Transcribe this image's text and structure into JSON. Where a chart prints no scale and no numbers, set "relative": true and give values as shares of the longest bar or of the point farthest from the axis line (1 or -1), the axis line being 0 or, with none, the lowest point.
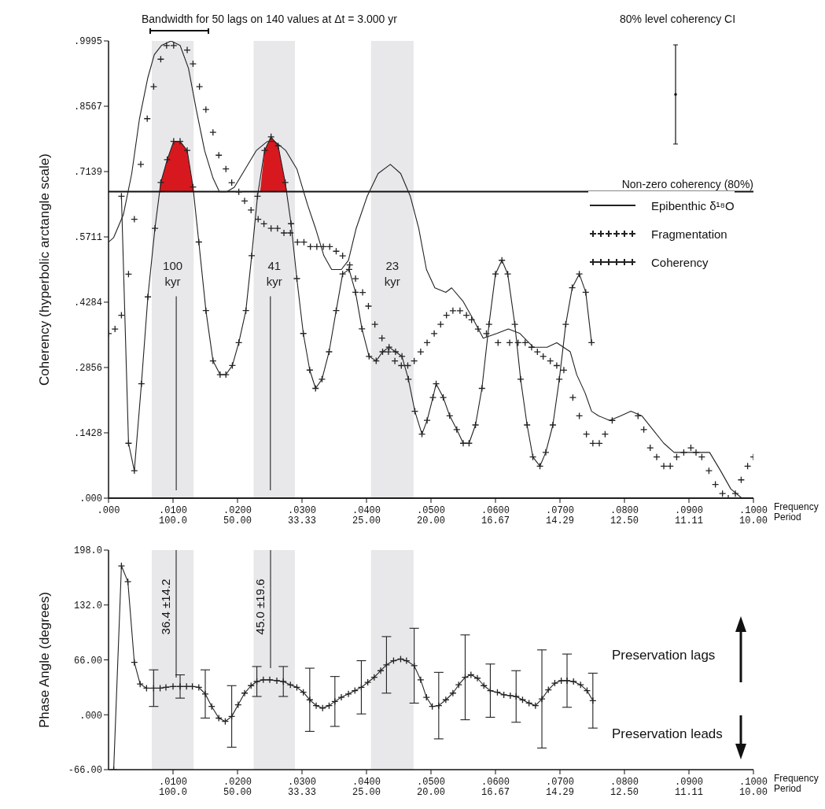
{
  "chart_data": [
    {
      "type": "line",
      "relative": true,
      "legend": "right",
      "xlim": [
        0,
        0.1
      ],
      "series": [
        {
          "name": "Epibenthic δ¹⁸O",
          "marker": "none",
          "color": "#222222",
          "x": [
            0,
            0.0008,
            0.0023,
            0.0036,
            0.0048,
            0.0061,
            0.0071,
            0.0082,
            0.0097,
            0.0111,
            0.0124,
            0.0136,
            0.0149,
            0.0162,
            0.0172,
            0.0183,
            0.0195,
            0.0212,
            0.0229,
            0.0246,
            0.0258,
            0.0275,
            0.0292,
            0.0309,
            0.0321,
            0.0334,
            0.0346,
            0.0361,
            0.0372,
            0.0384,
            0.0401,
            0.0418,
            0.0437,
            0.0453,
            0.0468,
            0.0481,
            0.0493,
            0.0506,
            0.0523,
            0.0532,
            0.055,
            0.0566,
            0.0581,
            0.0602,
            0.062,
            0.0638,
            0.0659,
            0.068,
            0.0695,
            0.0716,
            0.0726,
            0.0739,
            0.0749,
            0.076,
            0.0777,
            0.0794,
            0.081,
            0.0827,
            0.0844,
            0.0861,
            0.0877,
            0.0894,
            0.0911,
            0.0932,
            0.0949,
            0.0965,
            0.0982,
            0.1
          ],
          "values": [
            0.56,
            0.57,
            0.62,
            0.71,
            0.83,
            0.92,
            0.97,
            0.99,
            1,
            0.99,
            0.94,
            0.85,
            0.76,
            0.7,
            0.67,
            0.67,
            0.68,
            0.72,
            0.76,
            0.78,
            0.78,
            0.76,
            0.72,
            0.64,
            0.59,
            0.53,
            0.5,
            0.5,
            0.52,
            0.59,
            0.66,
            0.71,
            0.73,
            0.71,
            0.66,
            0.59,
            0.5,
            0.46,
            0.45,
            0.46,
            0.43,
            0.39,
            0.35,
            0.36,
            0.37,
            0.36,
            0.33,
            0.33,
            0.34,
            0.32,
            0.27,
            0.23,
            0.19,
            0.18,
            0.17,
            0.18,
            0.19,
            0.18,
            0.15,
            0.12,
            0.1,
            0.1,
            0.1,
            0.1,
            0.06,
            0.02,
            0,
            0
          ]
        },
        {
          "name": "Fragmentation",
          "type": "scatter",
          "marker": "cross",
          "color": "#222222",
          "x": [
            0,
            0.001,
            0.002,
            0.0031,
            0.004,
            0.005,
            0.006,
            0.007,
            0.0081,
            0.009,
            0.0101,
            0.0122,
            0.0131,
            0.0141,
            0.0151,
            0.0162,
            0.0171,
            0.0182,
            0.0191,
            0.0202,
            0.0211,
            0.0221,
            0.0232,
            0.0241,
            0.0252,
            0.0262,
            0.0272,
            0.0282,
            0.0293,
            0.0303,
            0.0313,
            0.0323,
            0.0333,
            0.0343,
            0.0353,
            0.0363,
            0.0374,
            0.0383,
            0.0394,
            0.0403,
            0.0413,
            0.0424,
            0.0434,
            0.0444,
            0.0454,
            0.0464,
            0.0474,
            0.0484,
            0.0494,
            0.0505,
            0.0515,
            0.0524,
            0.0534,
            0.0545,
            0.0555,
            0.0563,
            0.0573,
            0.0586,
            0.0604,
            0.0622,
            0.0635,
            0.0646,
            0.0656,
            0.0665,
            0.0674,
            0.0685,
            0.0695,
            0.0706,
            0.072,
            0.073,
            0.0741,
            0.0751,
            0.0761,
            0.077,
            0.0781,
            0.0821,
            0.083,
            0.084,
            0.085,
            0.0861,
            0.0871,
            0.0881,
            0.0892,
            0.0903,
            0.0911,
            0.092,
            0.0931,
            0.0941,
            0.0952,
            0.0961,
            0.0972,
            0.0981,
            0.0991,
            0.1
          ],
          "values": [
            0.36,
            0.37,
            0.4,
            0.49,
            0.61,
            0.73,
            0.83,
            0.9,
            0.96,
            0.99,
            0.99,
            0.98,
            0.95,
            0.9,
            0.85,
            0.8,
            0.75,
            0.72,
            0.69,
            0.67,
            0.65,
            0.63,
            0.61,
            0.6,
            0.59,
            0.59,
            0.58,
            0.58,
            0.56,
            0.56,
            0.55,
            0.55,
            0.55,
            0.55,
            0.54,
            0.53,
            0.51,
            0.48,
            0.45,
            0.42,
            0.38,
            0.35,
            0.32,
            0.3,
            0.29,
            0.29,
            0.3,
            0.32,
            0.34,
            0.36,
            0.38,
            0.4,
            0.41,
            0.41,
            0.4,
            0.39,
            0.37,
            0.36,
            0.34,
            0.34,
            0.34,
            0.34,
            0.33,
            0.32,
            0.31,
            0.3,
            0.29,
            0.28,
            0.22,
            0.18,
            0.14,
            0.12,
            0.12,
            0.14,
            0.17,
            0.18,
            0.15,
            0.11,
            0.09,
            0.07,
            0.07,
            0.09,
            0.1,
            0.11,
            0.1,
            0.09,
            0.06,
            0.03,
            0.01,
            0,
            0.01,
            0.04,
            0.07,
            0.09
          ]
        }
      ]
    },
    {
      "type": "line",
      "ylabel": "Coherency (hyperbolic arctangle scale)",
      "xlabel": "Frequency",
      "legend": "right",
      "xlim": [
        0,
        0.1
      ],
      "xticks": [
        {
          "value": 0,
          "label": ".000"
        },
        {
          "value": 0.01,
          "label": ".0100"
        },
        {
          "value": 0.02,
          "label": ".0200"
        },
        {
          "value": 0.03,
          "label": ".0300"
        },
        {
          "value": 0.04,
          "label": ".0400"
        },
        {
          "value": 0.05,
          "label": ".0500"
        },
        {
          "value": 0.06,
          "label": ".0600"
        },
        {
          "value": 0.07,
          "label": ".0700"
        },
        {
          "value": 0.08,
          "label": ".0800"
        },
        {
          "value": 0.09,
          "label": ".0900"
        },
        {
          "value": 0.1,
          "label": ".1000"
        }
      ],
      "ylim": [
        0,
        0.9995
      ],
      "yticks": [
        {
          "value": 0,
          "label": ".000"
        },
        {
          "value": 0.1428,
          "label": ".1428"
        },
        {
          "value": 0.2856,
          "label": ".2856"
        },
        {
          "value": 0.4284,
          "label": ".4284"
        },
        {
          "value": 0.5711,
          "label": ".5711"
        },
        {
          "value": 0.7139,
          "label": ".7139"
        },
        {
          "value": 0.8567,
          "label": ".8567"
        },
        {
          "value": 0.9995,
          "label": ".9995"
        }
      ],
      "bands": [
        {
          "axis": "x",
          "from": 0.0067,
          "to": 0.0132,
          "label": "100 kyr",
          "color": "#e8e8eb"
        },
        {
          "axis": "x",
          "from": 0.0225,
          "to": 0.0289,
          "label": "41 kyr",
          "color": "#e8e8eb"
        },
        {
          "axis": "x",
          "from": 0.0407,
          "to": 0.0473,
          "label": "23 kyr",
          "color": "#e8e8eb"
        }
      ],
      "ref_lines": [
        {
          "axis": "y",
          "value": 0.67,
          "label": "Non-zero coherency (80%)",
          "color": "#111111"
        }
      ],
      "annotations": [
        "Bandwidth for 50 lags on 140 values at Δt = 3.000 yr",
        "80% level coherency CI",
        "Period",
        "100.0",
        "50.00",
        "33.33",
        "25.00",
        "20.00",
        "16.67",
        "14.29",
        "12.50",
        "11.11",
        "10.00"
      ],
      "series": [
        {
          "name": "Coherency",
          "marker": "cross",
          "color": "#222222",
          "x": [
            0.002,
            0.0031,
            0.004,
            0.0051,
            0.0061,
            0.0072,
            0.0081,
            0.0091,
            0.0101,
            0.0111,
            0.0122,
            0.0131,
            0.014,
            0.0151,
            0.0162,
            0.0173,
            0.0182,
            0.0192,
            0.0202,
            0.0213,
            0.0222,
            0.0231,
            0.0242,
            0.0252,
            0.0263,
            0.0274,
            0.0283,
            0.0292,
            0.0302,
            0.0312,
            0.0321,
            0.0331,
            0.0342,
            0.0353,
            0.0363,
            0.0373,
            0.0383,
            0.0393,
            0.0404,
            0.0415,
            0.0425,
            0.0435,
            0.0445,
            0.0455,
            0.0465,
            0.0475,
            0.0486,
            0.0494,
            0.0503,
            0.0508,
            0.0519,
            0.0529,
            0.054,
            0.055,
            0.0559,
            0.0569,
            0.0579,
            0.059,
            0.06,
            0.061,
            0.0619,
            0.063,
            0.0639,
            0.0649,
            0.0658,
            0.0669,
            0.0678,
            0.0689,
            0.0699,
            0.0709,
            0.0719,
            0.073,
            0.074,
            0.0749
          ],
          "values": [
            0.66,
            0.12,
            0.06,
            0.25,
            0.44,
            0.59,
            0.69,
            0.74,
            0.78,
            0.78,
            0.76,
            0.68,
            0.56,
            0.41,
            0.3,
            0.27,
            0.27,
            0.29,
            0.34,
            0.41,
            0.53,
            0.66,
            0.76,
            0.79,
            0.77,
            0.69,
            0.6,
            0.48,
            0.36,
            0.28,
            0.24,
            0.26,
            0.32,
            0.41,
            0.49,
            0.5,
            0.45,
            0.37,
            0.31,
            0.3,
            0.32,
            0.33,
            0.32,
            0.31,
            0.26,
            0.19,
            0.14,
            0.17,
            0.22,
            0.25,
            0.22,
            0.18,
            0.15,
            0.12,
            0.12,
            0.16,
            0.24,
            0.38,
            0.49,
            0.52,
            0.49,
            0.38,
            0.26,
            0.16,
            0.09,
            0.07,
            0.1,
            0.16,
            0.26,
            0.38,
            0.46,
            0.49,
            0.45,
            0.34
          ]
        },
        {
          "type": "area",
          "color": "#d7191f",
          "x": [
            0.0079,
            0.0081,
            0.0091,
            0.0101,
            0.0111,
            0.0122,
            0.0131,
            0.0132,
            0.0133,
            0.0235,
            0.0242,
            0.0252,
            0.0263,
            0.0274,
            0.0277
          ],
          "values": [
            0.67,
            0.69,
            0.74,
            0.78,
            0.78,
            0.76,
            0.68,
            0.67,
            null,
            0.67,
            0.76,
            0.79,
            0.77,
            0.69,
            0.67
          ]
        }
      ]
    },
    {
      "type": "line",
      "ylabel": "Phase Angle (degrees)",
      "xlabel": "Frequency",
      "xlim": [
        0,
        0.1
      ],
      "xticks": [
        {
          "value": 0.01,
          "label": ".0100"
        },
        {
          "value": 0.02,
          "label": ".0200"
        },
        {
          "value": 0.03,
          "label": ".0300"
        },
        {
          "value": 0.04,
          "label": ".0400"
        },
        {
          "value": 0.05,
          "label": ".0500"
        },
        {
          "value": 0.06,
          "label": ".0600"
        },
        {
          "value": 0.07,
          "label": ".0700"
        },
        {
          "value": 0.08,
          "label": ".0800"
        },
        {
          "value": 0.09,
          "label": ".0900"
        },
        {
          "value": 0.1,
          "label": ".1000"
        }
      ],
      "ylim": [
        -66,
        198
      ],
      "yticks": [
        {
          "value": 198,
          "label": "198.0"
        },
        {
          "value": 132,
          "label": "132.0"
        },
        {
          "value": 66,
          "label": "66.00"
        },
        {
          "value": 0,
          "label": ".000"
        },
        {
          "value": -66,
          "label": "-66.00"
        }
      ],
      "bands": [
        {
          "axis": "x",
          "from": 0.0067,
          "to": 0.0132,
          "color": "#e8e8eb"
        },
        {
          "axis": "x",
          "from": 0.0225,
          "to": 0.0289,
          "color": "#e8e8eb"
        },
        {
          "axis": "x",
          "from": 0.0407,
          "to": 0.0473,
          "color": "#e8e8eb"
        }
      ],
      "annotations": [
        "36.4 ±14.2",
        "45.0 ±19.6",
        "Preservation lags",
        "Preservation leads",
        "Period",
        "100.0",
        "50.00",
        "33.33",
        "25.00",
        "20.00",
        "16.67",
        "14.29",
        "12.50",
        "11.11",
        "10.00"
      ],
      "series": [
        {
          "marker": "cross",
          "color": "#222222",
          "x": [
            0.0008,
            0.002,
            0.003,
            0.004,
            0.0049,
            0.0059,
            0.007,
            0.008,
            0.0089,
            0.01,
            0.0111,
            0.0121,
            0.013,
            0.014,
            0.015,
            0.016,
            0.0171,
            0.0181,
            0.0191,
            0.0201,
            0.0211,
            0.0221,
            0.023,
            0.024,
            0.025,
            0.0261,
            0.0271,
            0.0282,
            0.0292,
            0.0302,
            0.0312,
            0.0322,
            0.0332,
            0.0342,
            0.0351,
            0.0361,
            0.0372,
            0.0382,
            0.0392,
            0.0402,
            0.0412,
            0.0422,
            0.0431,
            0.0442,
            0.0453,
            0.0462,
            0.0474,
            0.0484,
            0.0493,
            0.0502,
            0.0512,
            0.0523,
            0.0534,
            0.0543,
            0.0553,
            0.0562,
            0.0572,
            0.0582,
            0.0592,
            0.0603,
            0.0613,
            0.0623,
            0.0632,
            0.0642,
            0.0652,
            0.0662,
            0.0672,
            0.0682,
            0.0692,
            0.0702,
            0.0711,
            0.0721,
            0.0732,
            0.0742,
            0.0751
          ],
          "values": [
            -66,
            179,
            160,
            63,
            37,
            32,
            32,
            32,
            33,
            34,
            34,
            34,
            34,
            33,
            25,
            10,
            -4,
            -8,
            -2,
            12,
            26,
            35,
            40,
            42,
            42,
            41,
            40,
            36,
            33,
            27,
            18,
            11,
            8,
            11,
            16,
            21,
            25,
            29,
            33,
            39,
            45,
            53,
            60,
            65,
            67,
            65,
            59,
            42,
            21,
            10,
            11,
            18,
            26,
            36,
            45,
            48,
            44,
            35,
            29,
            27,
            24,
            23,
            22,
            18,
            14,
            11,
            19,
            30,
            38,
            41,
            41,
            40,
            36,
            29,
            17
          ],
          "errors": [
            null,
            null,
            null,
            null,
            null,
            null,
            22,
            null,
            null,
            null,
            14,
            null,
            null,
            null,
            29,
            null,
            null,
            null,
            37,
            null,
            null,
            null,
            18,
            null,
            null,
            null,
            18,
            null,
            null,
            null,
            38,
            null,
            null,
            null,
            30,
            null,
            null,
            null,
            32,
            null,
            null,
            null,
            34,
            null,
            null,
            null,
            45,
            null,
            null,
            null,
            40,
            null,
            null,
            null,
            51,
            null,
            null,
            null,
            32,
            null,
            null,
            null,
            31,
            null,
            null,
            null,
            59,
            null,
            null,
            null,
            32,
            null,
            null,
            null,
            33
          ]
        }
      ]
    }
  ]
}
